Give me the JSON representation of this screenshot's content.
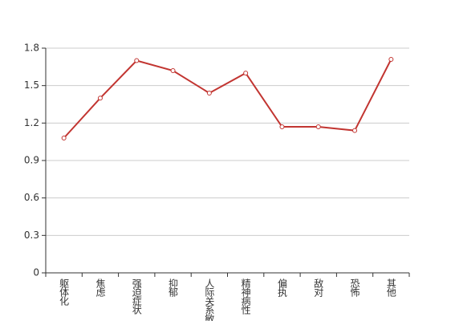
{
  "chart_data": {
    "type": "line",
    "categories": [
      "躯体化",
      "焦虑",
      "强迫症状",
      "抑郁",
      "人际关系敏感",
      "精神病性",
      "偏执",
      "敌对",
      "恐怖",
      "其他"
    ],
    "values": [
      1.08,
      1.4,
      1.7,
      1.62,
      1.44,
      1.6,
      1.17,
      1.17,
      1.14,
      1.71
    ],
    "color": "#c23531",
    "ylim": [
      0,
      1.8
    ],
    "yticks": [
      0,
      0.3,
      0.6,
      0.9,
      1.2,
      1.5,
      1.8
    ],
    "grid": true
  }
}
